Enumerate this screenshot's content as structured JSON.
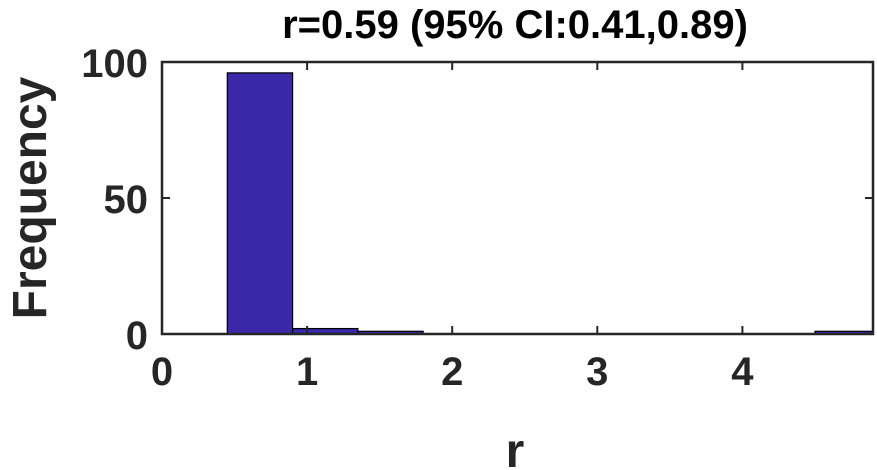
{
  "chart_data": {
    "type": "bar",
    "title": "r=0.59 (95% CI:0.41,0.89)",
    "xlabel": "r",
    "ylabel": "Frequency",
    "xlim": [
      0,
      4.9
    ],
    "ylim": [
      0,
      100
    ],
    "xticks": [
      0,
      1,
      2,
      3,
      4
    ],
    "yticks": [
      0,
      50,
      100
    ],
    "grid": false,
    "bins": [
      {
        "x_start": 0.45,
        "x_end": 0.9,
        "value": 96
      },
      {
        "x_start": 0.9,
        "x_end": 1.35,
        "value": 2
      },
      {
        "x_start": 1.35,
        "x_end": 1.8,
        "value": 1
      },
      {
        "x_start": 1.8,
        "x_end": 2.25,
        "value": 0
      },
      {
        "x_start": 2.25,
        "x_end": 2.7,
        "value": 0
      },
      {
        "x_start": 2.7,
        "x_end": 3.15,
        "value": 0
      },
      {
        "x_start": 3.15,
        "x_end": 3.6,
        "value": 0
      },
      {
        "x_start": 3.6,
        "x_end": 4.05,
        "value": 0
      },
      {
        "x_start": 4.05,
        "x_end": 4.5,
        "value": 0
      },
      {
        "x_start": 4.5,
        "x_end": 4.95,
        "value": 1
      }
    ],
    "bar_color": "#3b28a8",
    "edge_color": "#000000"
  }
}
